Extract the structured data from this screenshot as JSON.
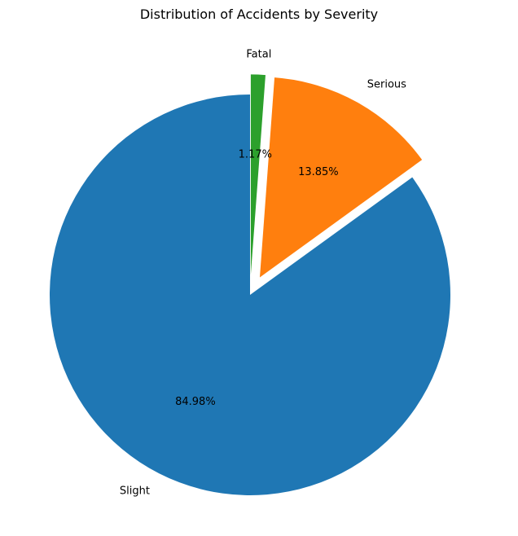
{
  "chart_data": {
    "type": "pie",
    "title": "Distribution of Accidents by Severity",
    "categories": [
      "Slight",
      "Serious",
      "Fatal"
    ],
    "values": [
      84.98,
      13.85,
      1.17
    ],
    "percent_labels": [
      "84.98%",
      "13.85%",
      "1.17%"
    ],
    "colors": [
      "#1f77b4",
      "#ff7f0e",
      "#2ca02c"
    ],
    "explode": [
      0,
      0.1,
      0.1
    ],
    "start_angle_degrees": 90,
    "direction": "counterclockwise",
    "legend": "none"
  }
}
